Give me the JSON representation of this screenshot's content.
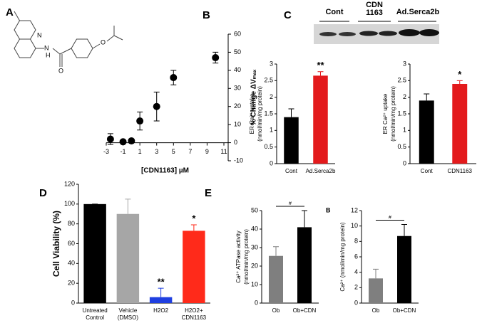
{
  "panel_labels": [
    "A",
    "B",
    "C",
    "D",
    "E"
  ],
  "structure_atoms": [
    "N",
    "N",
    "H",
    "O",
    "O"
  ],
  "blot_labels": [
    "Cont",
    "CDN 1163",
    "Ad.Serca2b"
  ],
  "chart_data": [
    {
      "type": "line",
      "x": [
        -2.5,
        -1,
        0,
        1,
        3,
        5,
        10
      ],
      "series": [
        {
          "color": "#000000",
          "values": [
            2,
            0.5,
            1,
            12,
            20,
            36,
            47
          ],
          "errors": [
            3,
            1,
            1,
            5,
            8,
            4,
            3
          ]
        }
      ],
      "xlim": [
        -3,
        11
      ],
      "xticks": [
        -3,
        -1,
        1,
        3,
        5,
        7,
        9,
        11
      ],
      "ylim": [
        -10,
        60
      ],
      "yticks": [
        -10,
        0,
        10,
        20,
        30,
        40,
        50,
        60
      ],
      "xlabel": "[CDN1163] µM",
      "ylabel": [
        "% Change ΔVₘₐₓ"
      ]
    },
    {
      "type": "bar",
      "categories": [
        [
          "Cont"
        ],
        [
          "Ad.Serca2b"
        ]
      ],
      "series": [
        {
          "values": [
            1.4,
            2.65
          ],
          "errors": [
            0.25,
            0.12
          ]
        }
      ],
      "colors": [
        "#000000",
        "#e31a1c"
      ],
      "annotations": [
        null,
        "**"
      ],
      "ylim": [
        0,
        3
      ],
      "yticks": [
        0,
        0.5,
        1,
        1.5,
        2,
        2.5,
        3
      ],
      "ylabel": [
        "ER Ca²⁺ uptake",
        "(nmol/min/mg protein)"
      ]
    },
    {
      "type": "bar",
      "categories": [
        [
          "Cont"
        ],
        [
          "CDN1163"
        ]
      ],
      "series": [
        {
          "values": [
            1.9,
            2.4
          ],
          "errors": [
            0.2,
            0.1
          ]
        }
      ],
      "colors": [
        "#000000",
        "#e31a1c"
      ],
      "annotations": [
        null,
        "*"
      ],
      "ylim": [
        0,
        3
      ],
      "yticks": [
        0,
        0.5,
        1,
        1.5,
        2,
        2.5,
        3
      ],
      "ylabel": [
        "ER Ca²⁺ uptake",
        "(nmol/min/mg protein)"
      ]
    },
    {
      "type": "bar",
      "categories": [
        [
          "Untreated",
          "Control"
        ],
        [
          "Vehicle",
          "(DMSO)"
        ],
        [
          "H2O2"
        ],
        [
          "H2O2+",
          "CDN1163"
        ]
      ],
      "series": [
        {
          "values": [
            100,
            90,
            6,
            73
          ],
          "errors": [
            0,
            15,
            9,
            6
          ]
        }
      ],
      "colors": [
        "#000000",
        "#a6a6a6",
        "#1f3fe0",
        "#ff2a1a"
      ],
      "annotations": [
        null,
        null,
        "**",
        "*"
      ],
      "ylim": [
        0,
        120
      ],
      "yticks": [
        0,
        20,
        40,
        60,
        80,
        100,
        120
      ],
      "ylabel": [
        "Cell Viability (%)"
      ]
    },
    {
      "type": "bar",
      "categories": [
        [
          "Ob"
        ],
        [
          "Ob+CDN"
        ]
      ],
      "series": [
        {
          "values": [
            25.5,
            41
          ],
          "errors": [
            5,
            9
          ]
        }
      ],
      "colors": [
        "#7f7f7f",
        "#000000"
      ],
      "bracket": "#",
      "ylim": [
        0,
        50
      ],
      "yticks": [
        0,
        10,
        20,
        30,
        40,
        50
      ],
      "ylabel": [
        "Ca²⁺ ATPase activity",
        "(nmol/min/mg protein)"
      ]
    },
    {
      "type": "bar",
      "panel_label": "B",
      "categories": [
        [
          "Ob"
        ],
        [
          "Ob+CDN"
        ]
      ],
      "series": [
        {
          "values": [
            3.2,
            8.7
          ],
          "errors": [
            1.2,
            1.5
          ]
        }
      ],
      "colors": [
        "#7f7f7f",
        "#000000"
      ],
      "bracket": "#",
      "ylim": [
        0,
        12
      ],
      "yticks": [
        0,
        2,
        4,
        6,
        8,
        10,
        12
      ],
      "ylabel": [
        "Ca²⁺ (nmol/min/mg protein)"
      ]
    }
  ]
}
